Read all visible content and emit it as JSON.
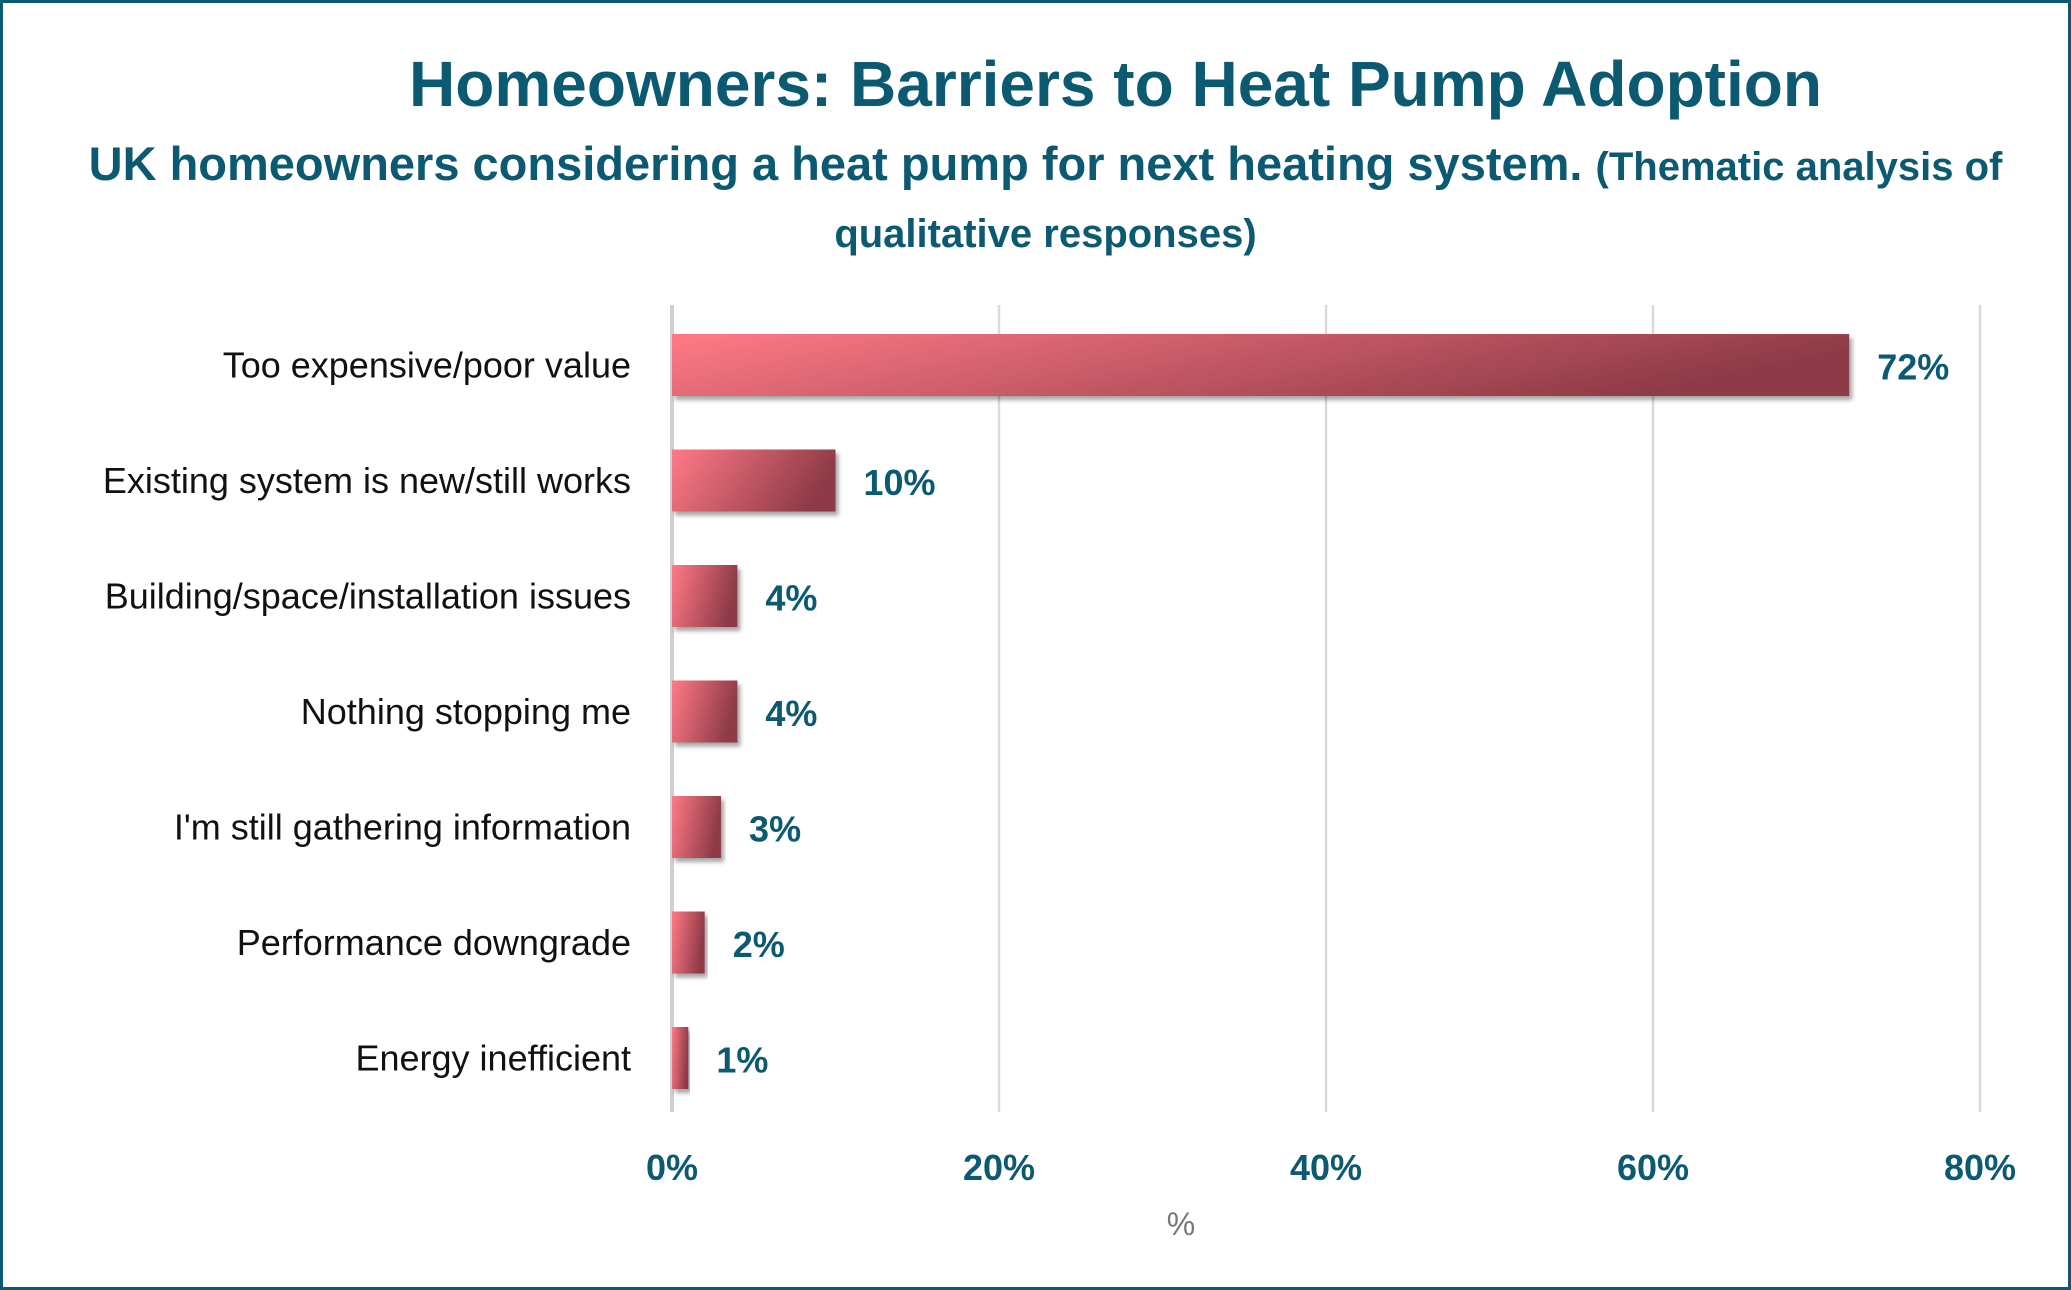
{
  "chart_data": {
    "type": "bar",
    "orientation": "horizontal",
    "title": "Homeowners: Barriers to Heat Pump Adoption",
    "subtitle_main": "UK homeowners considering a heat pump for next heating system.",
    "subtitle_note": "(Thematic analysis of qualitative responses)",
    "categories": [
      "Too expensive/poor value",
      "Existing system is new/still works",
      "Building/space/installation issues",
      "Nothing stopping me",
      "I'm still gathering information",
      "Performance downgrade",
      "Energy inefficient"
    ],
    "values": [
      72,
      10,
      4,
      4,
      3,
      2,
      1
    ],
    "value_labels": [
      "72%",
      "10%",
      "4%",
      "4%",
      "3%",
      "2%",
      "1%"
    ],
    "xlim": [
      0,
      80
    ],
    "xticks": [
      0,
      20,
      40,
      60,
      80
    ],
    "xtick_labels": [
      "0%",
      "20%",
      "40%",
      "60%",
      "80%"
    ],
    "xlabel": "%",
    "ylabel": "",
    "grid": true,
    "bar_color_light": "#ff7a86",
    "bar_color_dark": "#8e3b47",
    "text_color": "#0b5a72",
    "grid_color": "#d9d9d9"
  }
}
